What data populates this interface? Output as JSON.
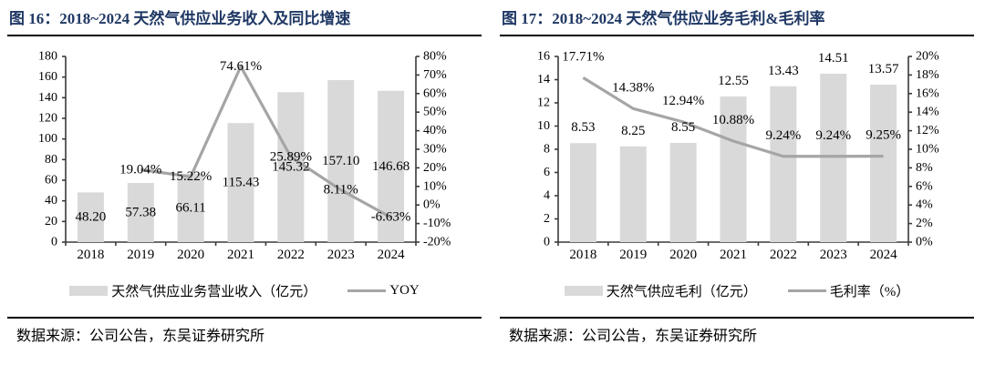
{
  "colors": {
    "title": "#1f3864",
    "bar": "#d9d9d9",
    "line": "#a5a5a5",
    "axis": "#3a3a3a",
    "text": "#000000",
    "rule": "#000000"
  },
  "chart_data": [
    {
      "type": "bar+line",
      "figure_label": "图 16",
      "title": "图 16：2018~2024 天然气供应业务收入及同比增速",
      "categories": [
        "2018",
        "2019",
        "2020",
        "2021",
        "2022",
        "2023",
        "2024"
      ],
      "series": [
        {
          "name": "天然气供应业务营业收入（亿元）",
          "type": "bar",
          "axis": "left",
          "values": [
            48.2,
            57.38,
            66.11,
            115.43,
            145.32,
            157.1,
            146.68
          ],
          "labels": [
            "48.20",
            "57.38",
            "66.11",
            "115.43",
            "145.32",
            "157.10",
            "146.68"
          ]
        },
        {
          "name": "YOY",
          "type": "line",
          "axis": "right",
          "values": [
            null,
            19.04,
            15.22,
            74.61,
            25.89,
            8.11,
            -6.63
          ],
          "labels": [
            null,
            "19.04%",
            "15.22%",
            "74.61%",
            "25.89%",
            "8.11%",
            "-6.63%"
          ]
        }
      ],
      "left_axis": {
        "min": 0,
        "max": 180,
        "step": 20,
        "suffix": ""
      },
      "right_axis": {
        "min": -20,
        "max": 80,
        "step": 10,
        "suffix": "%"
      },
      "grid": false,
      "legend_position": "bottom",
      "source": "数据来源：公司公告，东吴证券研究所"
    },
    {
      "type": "bar+line",
      "figure_label": "图 17",
      "title": "图 17：2018~2024 天然气供应业务毛利&毛利率",
      "categories": [
        "2018",
        "2019",
        "2020",
        "2021",
        "2022",
        "2023",
        "2024"
      ],
      "series": [
        {
          "name": "天然气供应毛利（亿元）",
          "type": "bar",
          "axis": "left",
          "values": [
            8.53,
            8.25,
            8.55,
            12.55,
            13.43,
            14.51,
            13.57
          ],
          "labels": [
            "8.53",
            "8.25",
            "8.55",
            "12.55",
            "13.43",
            "14.51",
            "13.57"
          ]
        },
        {
          "name": "毛利率（%）",
          "type": "line",
          "axis": "right",
          "values": [
            17.71,
            14.38,
            12.94,
            10.88,
            9.24,
            9.24,
            9.25
          ],
          "labels": [
            "17.71%",
            "14.38%",
            "12.94%",
            "10.88%",
            "9.24%",
            "9.24%",
            "9.25%"
          ]
        }
      ],
      "left_axis": {
        "min": 0,
        "max": 16,
        "step": 2,
        "suffix": ""
      },
      "right_axis": {
        "min": 0,
        "max": 20,
        "step": 2,
        "suffix": "%"
      },
      "grid": false,
      "legend_position": "bottom",
      "source": "数据来源：公司公告，东吴证券研究所"
    }
  ]
}
